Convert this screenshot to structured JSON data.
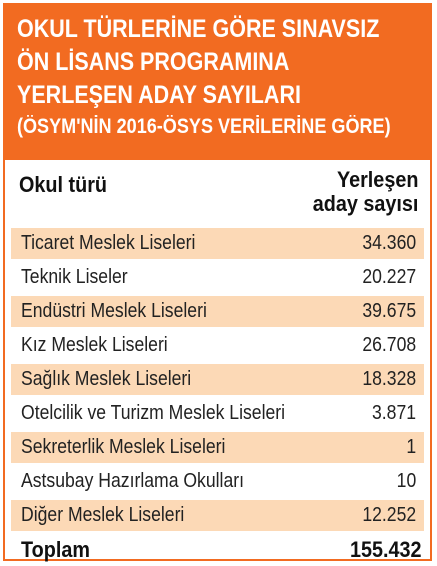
{
  "header": {
    "title_lines": [
      "OKUL TÜRLERİNE GÖRE SINAVSIZ",
      "ÖN LİSANS PROGRAMINA",
      "YERLEŞEN ADAY SAYILARI"
    ],
    "subtitle": "(ÖSYM'NİN 2016-ÖSYS VERİLERİNE GÖRE)"
  },
  "columns": {
    "school_type": "Okul türü",
    "placed_line1": "Yerleşen",
    "placed_line2": "aday sayısı"
  },
  "rows": [
    {
      "name": "Ticaret Meslek Liseleri",
      "value": "34.360"
    },
    {
      "name": "Teknik Liseler",
      "value": "20.227"
    },
    {
      "name": "Endüstri Meslek Liseleri",
      "value": "39.675"
    },
    {
      "name": "Kız Meslek Liseleri",
      "value": "26.708"
    },
    {
      "name": "Sağlık Meslek Liseleri",
      "value": "18.328"
    },
    {
      "name": "Otelcilik ve Turizm Meslek Liseleri",
      "value": "3.871"
    },
    {
      "name": "Sekreterlik Meslek Liseleri",
      "value": "1"
    },
    {
      "name": "Astsubay Hazırlama Okulları",
      "value": "10"
    },
    {
      "name": "Diğer Meslek Liseleri",
      "value": "12.252"
    }
  ],
  "total": {
    "label": "Toplam",
    "value": "155.432"
  },
  "colors": {
    "accent": "#f26b21",
    "row_shade": "#fcd9b6"
  }
}
